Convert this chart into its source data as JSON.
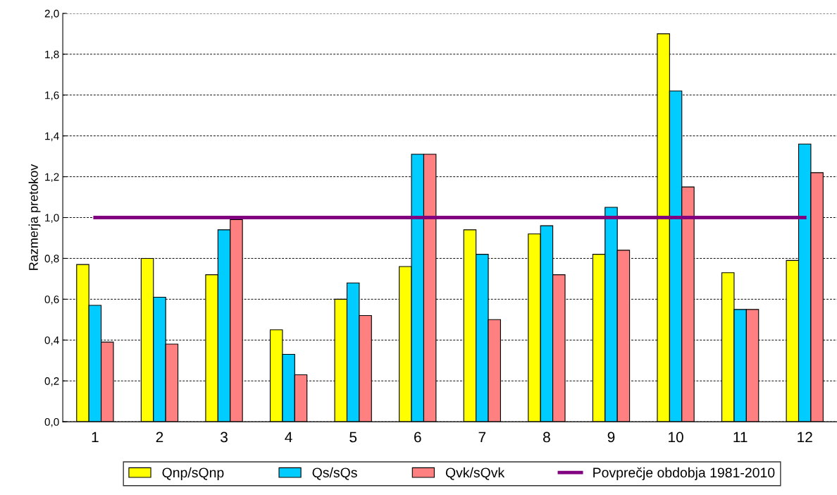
{
  "chart_data": {
    "type": "bar",
    "ylabel": "Razmerja pretokov",
    "categories": [
      "1",
      "2",
      "3",
      "4",
      "5",
      "6",
      "7",
      "8",
      "9",
      "10",
      "11",
      "12"
    ],
    "series": [
      {
        "name": "Qnp/sQnp",
        "color": "#ffff00",
        "values": [
          0.77,
          0.8,
          0.72,
          0.45,
          0.6,
          0.76,
          0.94,
          0.92,
          0.82,
          1.9,
          0.73,
          0.79
        ]
      },
      {
        "name": "Qs/sQs",
        "color": "#00ccff",
        "values": [
          0.57,
          0.61,
          0.94,
          0.33,
          0.68,
          1.31,
          0.82,
          0.96,
          1.05,
          1.62,
          0.55,
          1.36
        ]
      },
      {
        "name": "Qvk/sQvk",
        "color": "#ff8080",
        "values": [
          0.39,
          0.38,
          0.99,
          0.23,
          0.52,
          1.31,
          0.5,
          0.72,
          0.84,
          1.15,
          0.55,
          1.22
        ]
      },
      {
        "name": "Povprečje obdobja 1981-2010",
        "color": "#800080",
        "type": "line",
        "values": [
          1,
          1,
          1,
          1,
          1,
          1,
          1,
          1,
          1,
          1,
          1,
          1
        ]
      }
    ],
    "ylim": [
      0,
      2
    ],
    "yticks": [
      {
        "value": 0,
        "label": "0,0"
      },
      {
        "value": 0.2,
        "label": "0,2"
      },
      {
        "value": 0.4,
        "label": "0,4"
      },
      {
        "value": 0.6,
        "label": "0,6"
      },
      {
        "value": 0.8,
        "label": "0,8"
      },
      {
        "value": 1.0,
        "label": "1,0"
      },
      {
        "value": 1.2,
        "label": "1,2"
      },
      {
        "value": 1.4,
        "label": "1,4"
      },
      {
        "value": 1.6,
        "label": "1,6"
      },
      {
        "value": 1.8,
        "label": "1,8"
      },
      {
        "value": 2.0,
        "label": "2,0"
      }
    ],
    "grid": "y",
    "legend": "bottom",
    "marker": "none",
    "line_style": "solid"
  }
}
